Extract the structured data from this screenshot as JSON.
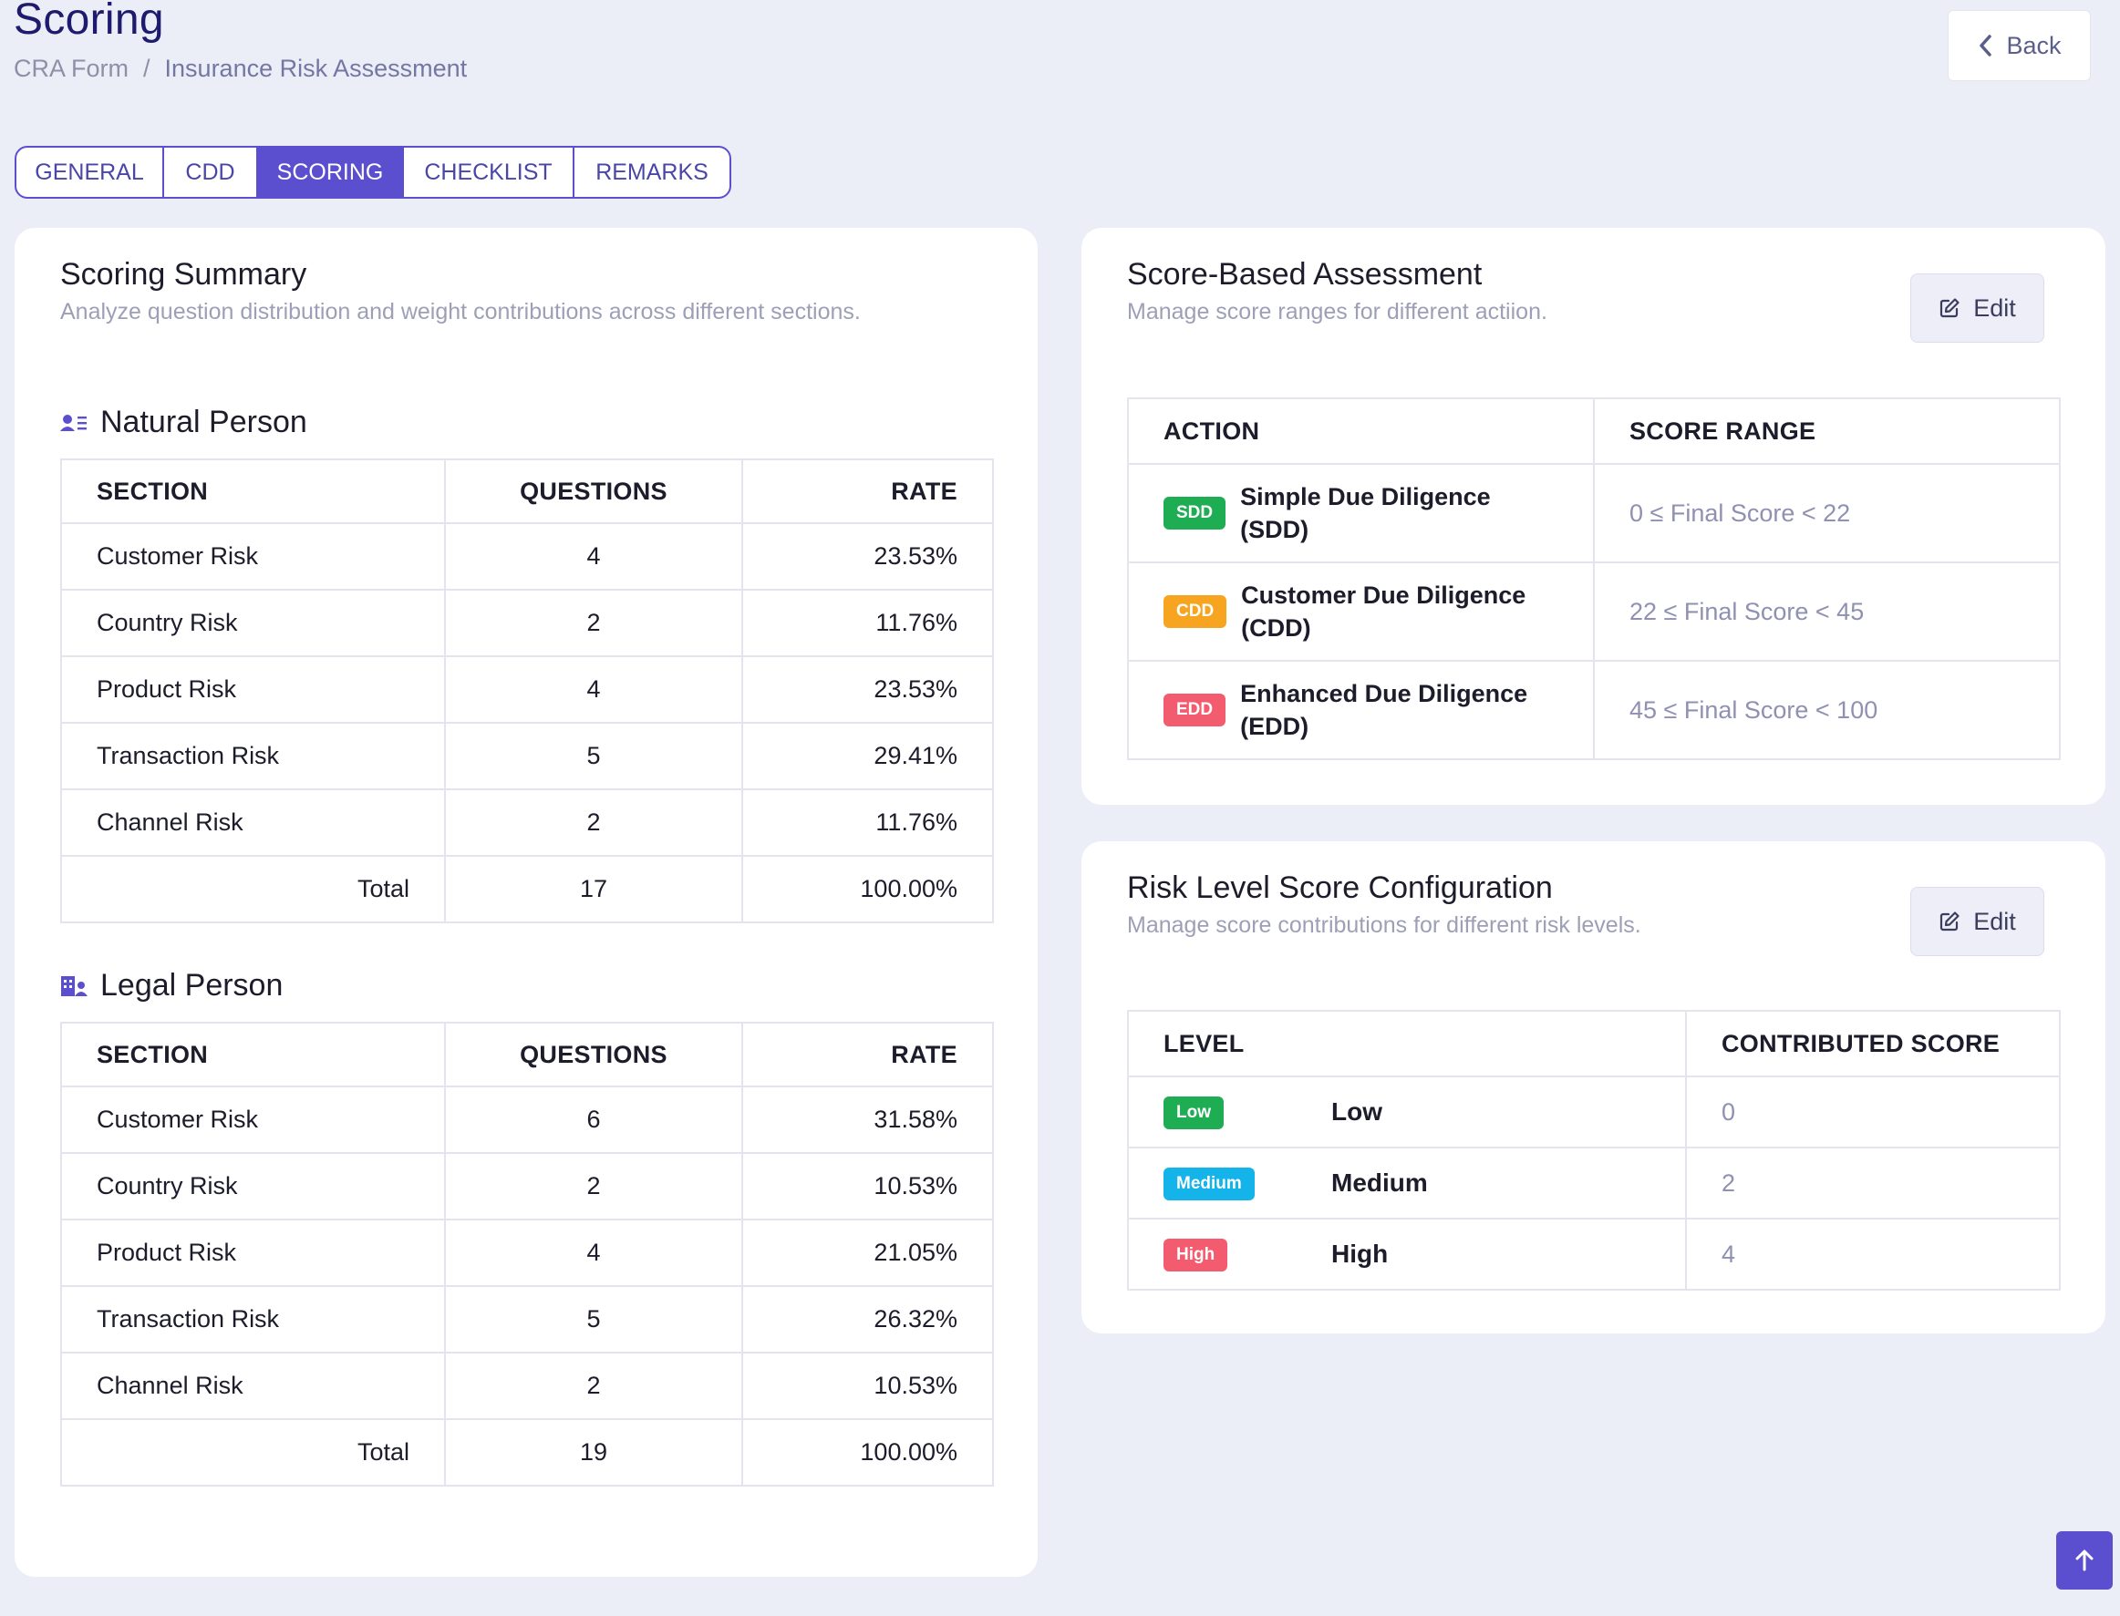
{
  "header": {
    "title": "Scoring",
    "breadcrumb": [
      "CRA Form",
      "Insurance Risk Assessment"
    ],
    "back_label": "Back"
  },
  "tabs": [
    {
      "label": "GENERAL",
      "active": false
    },
    {
      "label": "CDD",
      "active": false
    },
    {
      "label": "SCORING",
      "active": true
    },
    {
      "label": "CHECKLIST",
      "active": false
    },
    {
      "label": "REMARKS",
      "active": false
    }
  ],
  "summary": {
    "title": "Scoring Summary",
    "subtitle": "Analyze question distribution and weight contributions across different sections.",
    "columns": [
      "SECTION",
      "QUESTIONS",
      "RATE"
    ],
    "natural": {
      "title": "Natural Person",
      "icon": "person-list-icon",
      "rows": [
        {
          "section": "Customer Risk",
          "questions": "4",
          "rate": "23.53%"
        },
        {
          "section": "Country Risk",
          "questions": "2",
          "rate": "11.76%"
        },
        {
          "section": "Product Risk",
          "questions": "4",
          "rate": "23.53%"
        },
        {
          "section": "Transaction Risk",
          "questions": "5",
          "rate": "29.41%"
        },
        {
          "section": "Channel Risk",
          "questions": "2",
          "rate": "11.76%"
        }
      ],
      "total": {
        "label": "Total",
        "questions": "17",
        "rate": "100.00%"
      }
    },
    "legal": {
      "title": "Legal Person",
      "icon": "building-person-icon",
      "rows": [
        {
          "section": "Customer Risk",
          "questions": "6",
          "rate": "31.58%"
        },
        {
          "section": "Country Risk",
          "questions": "2",
          "rate": "10.53%"
        },
        {
          "section": "Product Risk",
          "questions": "4",
          "rate": "21.05%"
        },
        {
          "section": "Transaction Risk",
          "questions": "5",
          "rate": "26.32%"
        },
        {
          "section": "Channel Risk",
          "questions": "2",
          "rate": "10.53%"
        }
      ],
      "total": {
        "label": "Total",
        "questions": "19",
        "rate": "100.00%"
      }
    }
  },
  "assessment": {
    "title": "Score-Based Assessment",
    "subtitle": "Manage score ranges for different actiion.",
    "edit_label": "Edit",
    "columns": [
      "ACTION",
      "SCORE RANGE"
    ],
    "rows": [
      {
        "badge": "SDD",
        "color": "#1fad54",
        "label_line1": "Simple Due Diligence",
        "label_line2": "(SDD)",
        "range": "0 ≤ Final Score < 22"
      },
      {
        "badge": "CDD",
        "color": "#f7a521",
        "label_line1": "Customer Due Diligence",
        "label_line2": "(CDD)",
        "range": "22 ≤ Final Score < 45"
      },
      {
        "badge": "EDD",
        "color": "#f25c6e",
        "label_line1": "Enhanced Due Diligence",
        "label_line2": "(EDD)",
        "range": "45 ≤ Final Score < 100"
      }
    ]
  },
  "risk_level": {
    "title": "Risk Level Score Configuration",
    "subtitle": "Manage score contributions for different risk levels.",
    "edit_label": "Edit",
    "columns": [
      "LEVEL",
      "CONTRIBUTED SCORE"
    ],
    "rows": [
      {
        "badge": "Low",
        "color": "#1fad54",
        "name": "Low",
        "score": "0"
      },
      {
        "badge": "Medium",
        "color": "#14b3ea",
        "name": "Medium",
        "score": "2"
      },
      {
        "badge": "High",
        "color": "#f25c6e",
        "name": "High",
        "score": "4"
      }
    ]
  },
  "colors": {
    "accent": "#5b4fcf",
    "title": "#1e1b6e"
  }
}
